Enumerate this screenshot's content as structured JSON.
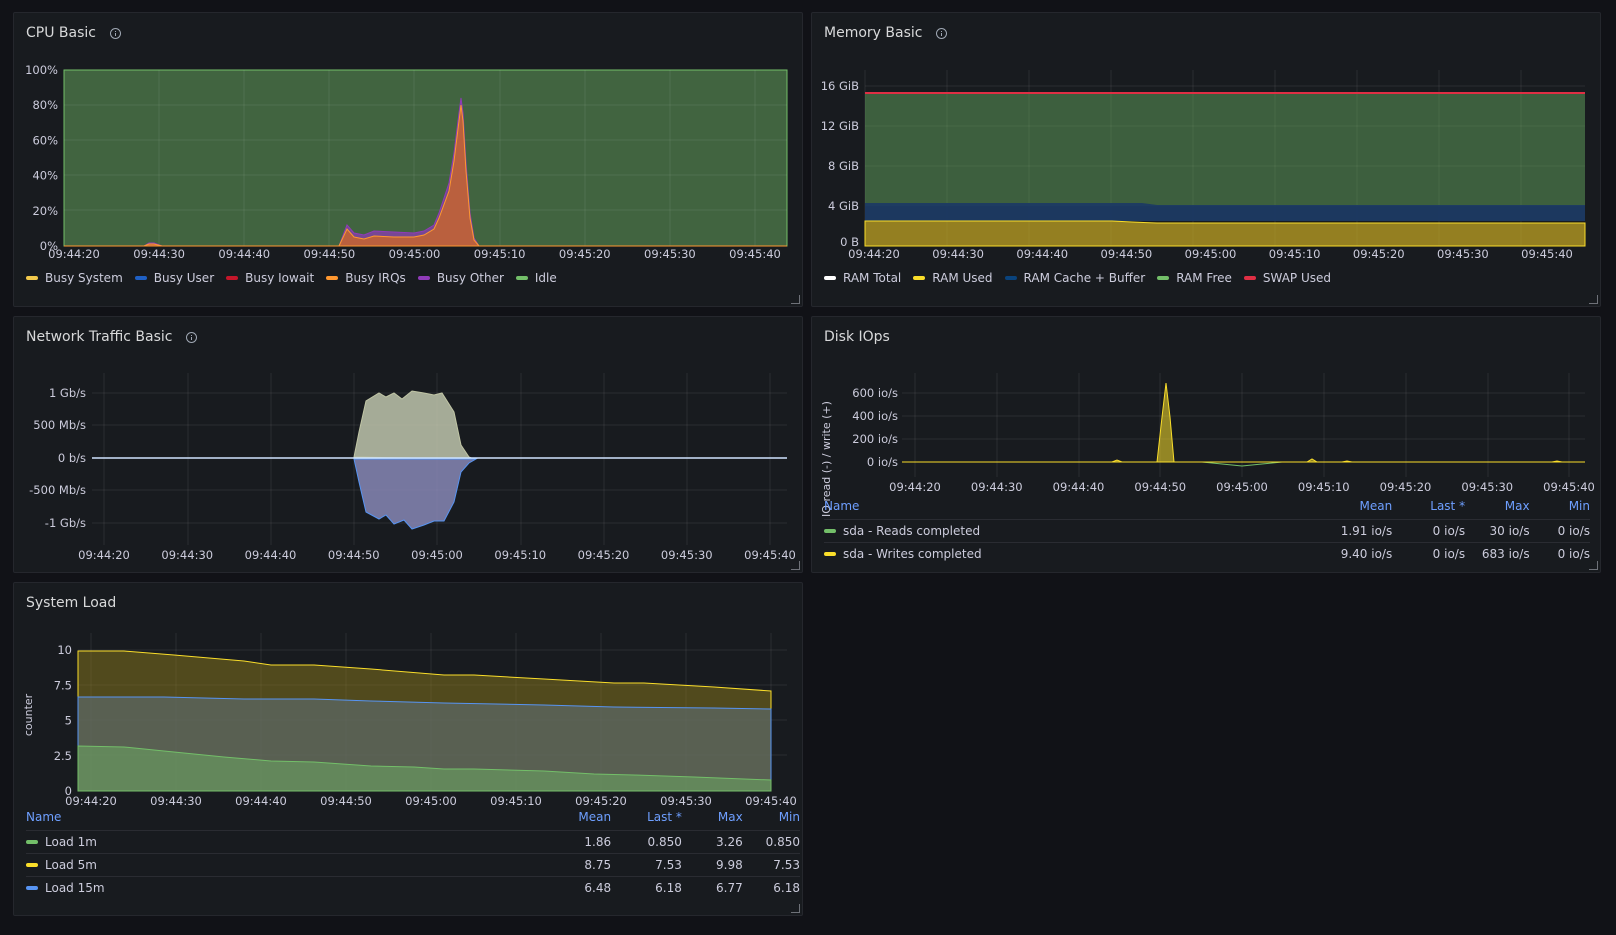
{
  "panels": {
    "cpu": {
      "title": "CPU Basic",
      "y_ticks": [
        "100%",
        "80%",
        "60%",
        "40%",
        "20%",
        "0%"
      ],
      "x_ticks": [
        "09:44:20",
        "09:44:30",
        "09:44:40",
        "09:44:50",
        "09:45:00",
        "09:45:10",
        "09:45:20",
        "09:45:30",
        "09:45:40"
      ],
      "legend": [
        {
          "label": "Busy System",
          "color": "#f2c94c"
        },
        {
          "label": "Busy User",
          "color": "#1f60c4"
        },
        {
          "label": "Busy Iowait",
          "color": "#c4162a"
        },
        {
          "label": "Busy IRQs",
          "color": "#ff9830"
        },
        {
          "label": "Busy Other",
          "color": "#8f3bb8"
        },
        {
          "label": "Idle",
          "color": "#73bf69"
        }
      ]
    },
    "memory": {
      "title": "Memory Basic",
      "y_ticks": [
        "16 GiB",
        "12 GiB",
        "8 GiB",
        "4 GiB",
        "0 B"
      ],
      "x_ticks": [
        "09:44:20",
        "09:44:30",
        "09:44:40",
        "09:44:50",
        "09:45:00",
        "09:45:10",
        "09:45:20",
        "09:45:30",
        "09:45:40"
      ],
      "legend": [
        {
          "label": "RAM Total",
          "color": "#ffffff"
        },
        {
          "label": "RAM Used",
          "color": "#fade2a"
        },
        {
          "label": "RAM Cache + Buffer",
          "color": "#0a437c"
        },
        {
          "label": "RAM Free",
          "color": "#73bf69"
        },
        {
          "label": "SWAP Used",
          "color": "#e02f44"
        }
      ]
    },
    "network": {
      "title": "Network Traffic Basic",
      "y_ticks": [
        "1 Gb/s",
        "500 Mb/s",
        "0 b/s",
        "-500 Mb/s",
        "-1 Gb/s"
      ],
      "x_ticks": [
        "09:44:20",
        "09:44:30",
        "09:44:40",
        "09:44:50",
        "09:45:00",
        "09:45:10",
        "09:45:20",
        "09:45:30",
        "09:45:40"
      ]
    },
    "disk": {
      "title": "Disk IOps",
      "y_axis_label": "IO read (-) / write (+)",
      "y_ticks": [
        "600 io/s",
        "400 io/s",
        "200 io/s",
        "0 io/s"
      ],
      "x_ticks": [
        "09:44:20",
        "09:44:30",
        "09:44:40",
        "09:44:50",
        "09:45:00",
        "09:45:10",
        "09:45:20",
        "09:45:30",
        "09:45:40"
      ],
      "table": {
        "headers": [
          "Name",
          "Mean",
          "Last *",
          "Max",
          "Min"
        ],
        "rows": [
          {
            "name": "sda - Reads completed",
            "color": "#73bf69",
            "mean": "1.91 io/s",
            "last": "0 io/s",
            "max": "30 io/s",
            "min": "0 io/s"
          },
          {
            "name": "sda - Writes completed",
            "color": "#fade2a",
            "mean": "9.40 io/s",
            "last": "0 io/s",
            "max": "683 io/s",
            "min": "0 io/s"
          }
        ]
      }
    },
    "load": {
      "title": "System Load",
      "y_axis_label": "counter",
      "y_ticks": [
        "10",
        "7.5",
        "5",
        "2.5",
        "0"
      ],
      "x_ticks": [
        "09:44:20",
        "09:44:30",
        "09:44:40",
        "09:44:50",
        "09:45:00",
        "09:45:10",
        "09:45:20",
        "09:45:30",
        "09:45:40"
      ],
      "table": {
        "headers": [
          "Name",
          "Mean",
          "Last *",
          "Max",
          "Min"
        ],
        "rows": [
          {
            "name": "Load 1m",
            "color": "#73bf69",
            "mean": "1.86",
            "last": "0.850",
            "max": "3.26",
            "min": "0.850"
          },
          {
            "name": "Load 5m",
            "color": "#fade2a",
            "mean": "8.75",
            "last": "7.53",
            "max": "9.98",
            "min": "7.53"
          },
          {
            "name": "Load 15m",
            "color": "#5794f2",
            "mean": "6.48",
            "last": "6.18",
            "max": "6.77",
            "min": "6.18"
          }
        ]
      }
    }
  }
}
